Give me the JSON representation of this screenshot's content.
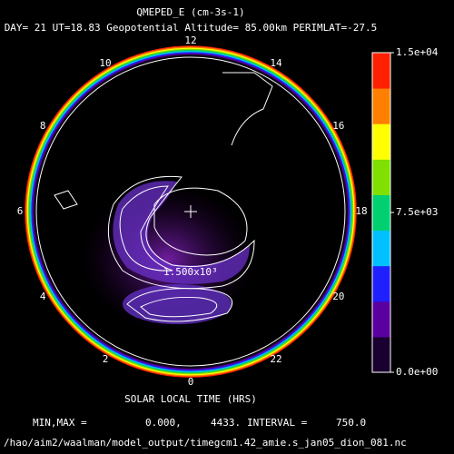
{
  "chart_data": {
    "type": "polar-contour",
    "title": "QMEPED_E (cm-3s-1)",
    "subtitle": "DAY= 21 UT=18.83 Geopotential Altitude= 85.00km PERIMLAT=-27.5",
    "xlabel": "SOLAR LOCAL TIME (HRS)",
    "local_times": [
      0,
      2,
      4,
      6,
      8,
      10,
      12,
      14,
      16,
      18,
      20,
      22
    ],
    "contour_labels": [
      "1.500x10³"
    ],
    "clim": [
      0,
      15000
    ],
    "cticks": [
      {
        "value": 0,
        "label": "0.0e+00"
      },
      {
        "value": 7500,
        "label": "7.5e+03"
      },
      {
        "value": 15000,
        "label": "1.5e+04"
      }
    ],
    "colormap": [
      "#1a0030",
      "#5a00a0",
      "#2020ff",
      "#00c0ff",
      "#00d070",
      "#80e000",
      "#ffff00",
      "#ff8000",
      "#ff2000"
    ],
    "footer": [
      "MIN,MAX =",
      "0.000,",
      "4433.",
      "INTERVAL =",
      "750.0"
    ],
    "path": "/hao/aim2/waalman/model_output/timegcm1.42_amie.s_jan05_dion_081.nc"
  }
}
